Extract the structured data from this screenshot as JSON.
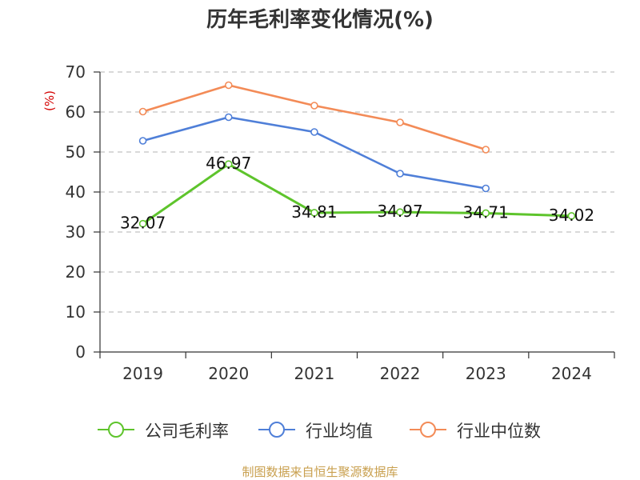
{
  "chart_data": {
    "type": "line",
    "title": "历年毛利率变化情况(%)",
    "ylabel": "(%)",
    "categories": [
      "2019",
      "2020",
      "2021",
      "2022",
      "2023",
      "2024"
    ],
    "ylim": [
      0,
      70
    ],
    "yticks": [
      0,
      10,
      20,
      30,
      40,
      50,
      60,
      70
    ],
    "grid": true,
    "legend_position": "bottom",
    "series": [
      {
        "name": "公司毛利率",
        "values": [
          32.07,
          46.97,
          34.81,
          34.97,
          34.71,
          34.02
        ],
        "color": "#5ec42c",
        "data_labels": true
      },
      {
        "name": "行业均值",
        "values": [
          52.8,
          58.7,
          55.0,
          44.6,
          40.9,
          null
        ],
        "color": "#4f7fd8",
        "data_labels": false
      },
      {
        "name": "行业中位数",
        "values": [
          60.1,
          66.7,
          61.6,
          57.4,
          50.6,
          null
        ],
        "color": "#f38b57",
        "data_labels": false
      }
    ]
  },
  "source_note": "制图数据来自恒生聚源数据库",
  "colors": {
    "ylabel": "#d40000",
    "source_note": "#c9a04f",
    "axis": "#333333",
    "grid": "#c2c2c2"
  }
}
